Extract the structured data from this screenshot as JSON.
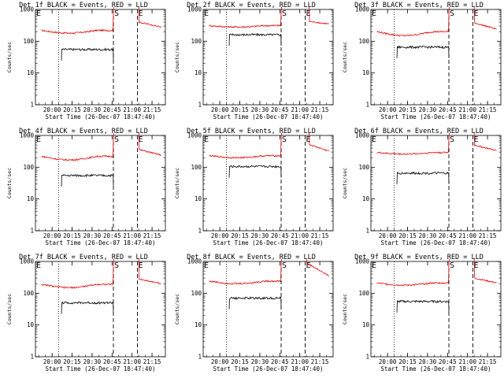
{
  "chart_data": [
    {
      "type": "line",
      "title": "Det 1f BLACK = Events, RED = LLD",
      "ylabel": "Counts/sec",
      "xlabel": "Start Time (26-Dec-07 18:47:40)",
      "x_ticks": [
        "20:00",
        "20:15",
        "20:30",
        "20:45",
        "21:00",
        "21:15"
      ],
      "y_ticks": [
        "1",
        "10",
        "100",
        "1000"
      ],
      "ylim": [
        1,
        1000
      ],
      "yscale": "log",
      "events_level": 55,
      "events_range": [
        "20:07",
        "20:46"
      ],
      "lld_start": "19:52",
      "lld_base": 220,
      "lld_dip": 180,
      "lld_spike": 1000,
      "lld_after_range": [
        "21:05",
        "21:22"
      ],
      "lld_after": [
        400,
        280
      ],
      "saa_start": "20:46",
      "saa_end": "21:04",
      "vline_dotted": "20:05",
      "marker_s": "S",
      "marker_e": "E"
    },
    {
      "type": "line",
      "title": "Det 2f BLACK = Events, RED = LLD",
      "ylabel": "Counts/sec",
      "xlabel": "Start Time (26-Dec-07 18:47:40)",
      "x_ticks": [
        "20:00",
        "20:15",
        "20:30",
        "20:45",
        "21:00",
        "21:15"
      ],
      "y_ticks": [
        "1",
        "10",
        "100",
        "1000"
      ],
      "ylim": [
        1,
        1000
      ],
      "yscale": "log",
      "events_level": 160,
      "events_range": [
        "20:07",
        "20:46"
      ],
      "lld_start": "19:52",
      "lld_base": 310,
      "lld_dip": 280,
      "lld_spike": 1000,
      "lld_after_range": [
        "21:07",
        "21:22"
      ],
      "lld_after": [
        420,
        350
      ],
      "saa_start": "20:46",
      "saa_end": "21:04",
      "vline_dotted": "20:05",
      "marker_s": "S",
      "marker_e": "E"
    },
    {
      "type": "line",
      "title": "Det 3f BLACK = Events, RED = LLD",
      "ylabel": "Counts/sec",
      "xlabel": "Start Time (26-Dec-07 18:47:40)",
      "x_ticks": [
        "20:00",
        "20:15",
        "20:30",
        "20:45",
        "21:00",
        "21:15"
      ],
      "y_ticks": [
        "1",
        "10",
        "100",
        "1000"
      ],
      "ylim": [
        1,
        1000
      ],
      "yscale": "log",
      "events_level": 65,
      "events_range": [
        "20:07",
        "20:46"
      ],
      "lld_start": "19:52",
      "lld_base": 200,
      "lld_dip": 150,
      "lld_spike": 1000,
      "lld_after_range": [
        "21:05",
        "21:22"
      ],
      "lld_after": [
        380,
        240
      ],
      "saa_start": "20:46",
      "saa_end": "21:04",
      "vline_dotted": "20:05",
      "marker_s": "S",
      "marker_e": "E"
    },
    {
      "type": "line",
      "title": "Det 4f BLACK = Events, RED = LLD",
      "ylabel": "Counts/sec",
      "xlabel": "Start Time (26-Dec-07 18:47:40)",
      "x_ticks": [
        "20:00",
        "20:15",
        "20:30",
        "20:45",
        "21:00",
        "21:15"
      ],
      "y_ticks": [
        "1",
        "10",
        "100",
        "1000"
      ],
      "ylim": [
        1,
        1000
      ],
      "yscale": "log",
      "events_level": 55,
      "events_range": [
        "20:07",
        "20:46"
      ],
      "lld_start": "19:52",
      "lld_base": 220,
      "lld_dip": 170,
      "lld_spike": 1000,
      "lld_after_range": [
        "21:05",
        "21:22"
      ],
      "lld_after": [
        360,
        240
      ],
      "saa_start": "20:46",
      "saa_end": "21:04",
      "vline_dotted": "20:05",
      "marker_s": "S",
      "marker_e": "E"
    },
    {
      "type": "line",
      "title": "Det 5f BLACK = Events, RED = LLD",
      "ylabel": "Counts/sec",
      "xlabel": "Start Time (26-Dec-07 18:47:40)",
      "x_ticks": [
        "20:00",
        "20:15",
        "20:30",
        "20:45",
        "21:00",
        "21:15"
      ],
      "y_ticks": [
        "1",
        "10",
        "100",
        "1000"
      ],
      "ylim": [
        1,
        1000
      ],
      "yscale": "log",
      "events_level": 105,
      "events_range": [
        "20:07",
        "20:46"
      ],
      "lld_start": "19:52",
      "lld_base": 230,
      "lld_dip": 200,
      "lld_spike": 1000,
      "lld_after_range": [
        "21:07",
        "21:22"
      ],
      "lld_after": [
        520,
        320
      ],
      "saa_start": "20:46",
      "saa_end": "21:04",
      "vline_dotted": "20:05",
      "marker_s": "S",
      "marker_e": "E"
    },
    {
      "type": "line",
      "title": "Det 6f BLACK = Events, RED = LLD",
      "ylabel": "Counts/sec",
      "xlabel": "Start Time (26-Dec-07 18:47:40)",
      "x_ticks": [
        "20:00",
        "20:15",
        "20:30",
        "20:45",
        "21:00",
        "21:15"
      ],
      "y_ticks": [
        "1",
        "10",
        "100",
        "1000"
      ],
      "ylim": [
        1,
        1000
      ],
      "yscale": "log",
      "events_level": 65,
      "events_range": [
        "20:07",
        "20:46"
      ],
      "lld_start": "19:52",
      "lld_base": 290,
      "lld_dip": 260,
      "lld_spike": 1000,
      "lld_after_range": [
        "21:05",
        "21:22"
      ],
      "lld_after": [
        500,
        330
      ],
      "saa_start": "20:46",
      "saa_end": "21:04",
      "vline_dotted": "20:05",
      "marker_s": "S",
      "marker_e": "E"
    },
    {
      "type": "line",
      "title": "Det 7f BLACK = Events, RED = LLD",
      "ylabel": "Counts/sec",
      "xlabel": "Start Time (26-Dec-07 18:47:40)",
      "x_ticks": [
        "20:00",
        "20:15",
        "20:30",
        "20:45",
        "21:00",
        "21:15"
      ],
      "y_ticks": [
        "1",
        "10",
        "100",
        "1000"
      ],
      "ylim": [
        1,
        1000
      ],
      "yscale": "log",
      "events_level": 50,
      "events_range": [
        "20:07",
        "20:46"
      ],
      "lld_start": "19:52",
      "lld_base": 190,
      "lld_dip": 150,
      "lld_spike": 1000,
      "lld_after_range": [
        "21:05",
        "21:22"
      ],
      "lld_after": [
        280,
        200
      ],
      "saa_start": "20:46",
      "saa_end": "21:04",
      "vline_dotted": "20:05",
      "marker_s": "S",
      "marker_e": "E"
    },
    {
      "type": "line",
      "title": "Det 8f BLACK = Events, RED = LLD",
      "ylabel": "Counts/sec",
      "xlabel": "Start Time (26-Dec-07 18:47:40)",
      "x_ticks": [
        "20:00",
        "20:15",
        "20:30",
        "20:45",
        "21:00",
        "21:15"
      ],
      "y_ticks": [
        "1",
        "10",
        "100",
        "1000"
      ],
      "ylim": [
        1,
        1000
      ],
      "yscale": "log",
      "events_level": 70,
      "events_range": [
        "20:07",
        "20:46"
      ],
      "lld_start": "19:52",
      "lld_base": 240,
      "lld_dip": 200,
      "lld_spike": 1000,
      "lld_after_range": [
        "21:05",
        "21:22"
      ],
      "lld_after": [
        900,
        350
      ],
      "saa_start": "20:46",
      "saa_end": "21:04",
      "vline_dotted": "20:05",
      "marker_s": "S",
      "marker_e": "E"
    },
    {
      "type": "line",
      "title": "Det 9f BLACK = Events, RED = LLD",
      "ylabel": "Counts/sec",
      "xlabel": "Start Time (26-Dec-07 18:47:40)",
      "x_ticks": [
        "20:00",
        "20:15",
        "20:30",
        "20:45",
        "21:00",
        "21:15"
      ],
      "y_ticks": [
        "1",
        "10",
        "100",
        "1000"
      ],
      "ylim": [
        1,
        1000
      ],
      "yscale": "log",
      "events_level": 55,
      "events_range": [
        "20:07",
        "20:46"
      ],
      "lld_start": "19:52",
      "lld_base": 210,
      "lld_dip": 180,
      "lld_spike": 1000,
      "lld_after_range": [
        "21:05",
        "21:22"
      ],
      "lld_after": [
        300,
        210
      ],
      "saa_start": "20:46",
      "saa_end": "21:04",
      "vline_dotted": "20:05",
      "marker_s": "S",
      "marker_e": "E"
    }
  ],
  "colors": {
    "events": "#000000",
    "lld": "#ee0000",
    "axis": "#000000",
    "background": "#ffffff"
  }
}
